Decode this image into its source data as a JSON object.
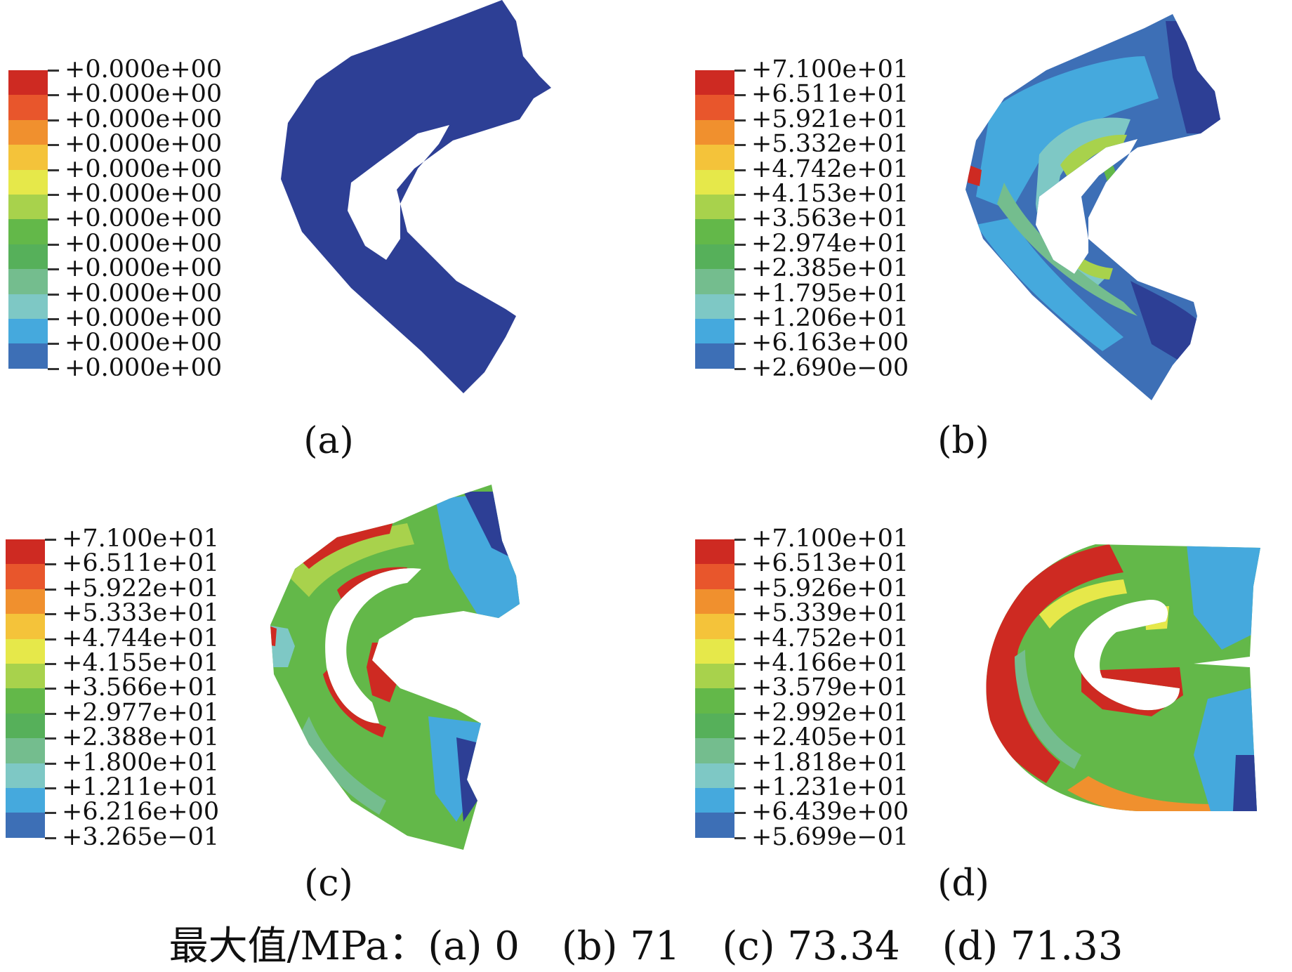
{
  "palette": [
    "#ce2a22",
    "#e8562c",
    "#f0902e",
    "#f4c33a",
    "#e6e84a",
    "#a8d24c",
    "#63b849",
    "#56b05a",
    "#74bd8e",
    "#7ec8c5",
    "#45a9dd",
    "#3d6fb6",
    "#2d3f95"
  ],
  "panels": [
    {
      "id": "a",
      "caption": "(a)",
      "labels": [
        "+0.000e+00",
        "+0.000e+00",
        "+0.000e+00",
        "+0.000e+00",
        "+0.000e+00",
        "+0.000e+00",
        "+0.000e+00",
        "+0.000e+00",
        "+0.000e+00",
        "+0.000e+00",
        "+0.000e+00",
        "+0.000e+00",
        "+0.000e+00"
      ]
    },
    {
      "id": "b",
      "caption": "(b)",
      "labels": [
        "+7.100e+01",
        "+6.511e+01",
        "+5.921e+01",
        "+5.332e+01",
        "+4.742e+01",
        "+4.153e+01",
        "+3.563e+01",
        "+2.974e+01",
        "+2.385e+01",
        "+1.795e+01",
        "+1.206e+01",
        "+6.163e+00",
        "+2.690e−00"
      ]
    },
    {
      "id": "c",
      "caption": "(c)",
      "labels": [
        "+7.100e+01",
        "+6.511e+01",
        "+5.922e+01",
        "+5.333e+01",
        "+4.744e+01",
        "+4.155e+01",
        "+3.566e+01",
        "+2.977e+01",
        "+2.388e+01",
        "+1.800e+01",
        "+1.211e+01",
        "+6.216e+00",
        "+3.265e−01"
      ]
    },
    {
      "id": "d",
      "caption": "(d)",
      "labels": [
        "+7.100e+01",
        "+6.513e+01",
        "+5.926e+01",
        "+5.339e+01",
        "+4.752e+01",
        "+4.166e+01",
        "+3.579e+01",
        "+2.992e+01",
        "+2.405e+01",
        "+1.818e+01",
        "+1.231e+01",
        "+6.439e+00",
        "+5.699e−01"
      ]
    }
  ],
  "footer": {
    "label": "最大值/MPa：",
    "a": "(a) 0",
    "b": "(b) 71",
    "c": "(c) 73.34",
    "d": "(d) 71.33"
  }
}
